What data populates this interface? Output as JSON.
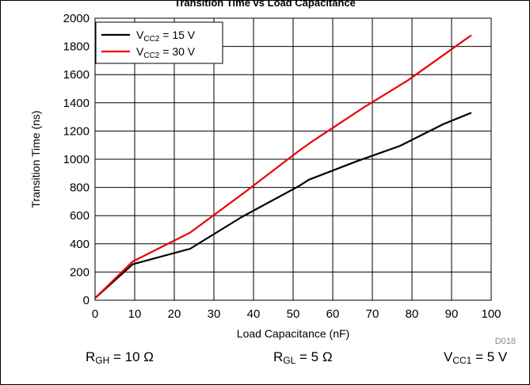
{
  "page": {
    "title": "Transition Time vs Load Capacitance"
  },
  "chart_data": {
    "type": "line",
    "title": "Transition Time vs Load Capacitance",
    "xlabel": "Load Capacitance (nF)",
    "ylabel": "Transition Time (ns)",
    "xlim": [
      0,
      100
    ],
    "ylim": [
      0,
      2000
    ],
    "x_ticks": [
      "0",
      "10",
      "20",
      "30",
      "40",
      "50",
      "60",
      "70",
      "80",
      "90",
      "100"
    ],
    "y_ticks": [
      "0",
      "200",
      "400",
      "600",
      "800",
      "1000",
      "1200",
      "1400",
      "1600",
      "1800",
      "2000"
    ],
    "grid": true,
    "legend_position": "top-left",
    "series": [
      {
        "name": "VCC2 = 15 V",
        "legend_main": "V",
        "legend_sub": "CC2",
        "legend_rest": " = 15 V",
        "color": "#000000",
        "x": [
          0,
          9.5,
          24,
          37,
          51.5,
          54,
          66,
          77,
          88,
          95
        ],
        "y": [
          15,
          255,
          365,
          590,
          810,
          855,
          985,
          1095,
          1250,
          1330
        ]
      },
      {
        "name": "VCC2 = 30 V",
        "legend_main": "V",
        "legend_sub": "CC2",
        "legend_rest": " = 30 V",
        "color": "#e8000b",
        "x": [
          0,
          9.5,
          24,
          38,
          51.5,
          54.5,
          68,
          79,
          90,
          95
        ],
        "y": [
          15,
          275,
          480,
          770,
          1060,
          1120,
          1370,
          1560,
          1780,
          1880
        ]
      }
    ],
    "annotation_code": "D018"
  },
  "conditions": [
    {
      "main": "R",
      "sub": "GH",
      "rest": " = 10 Ω"
    },
    {
      "main": "R",
      "sub": "GL",
      "rest": " = 5 Ω"
    },
    {
      "main": "V",
      "sub": "CC1",
      "rest": " = 5 V"
    }
  ]
}
